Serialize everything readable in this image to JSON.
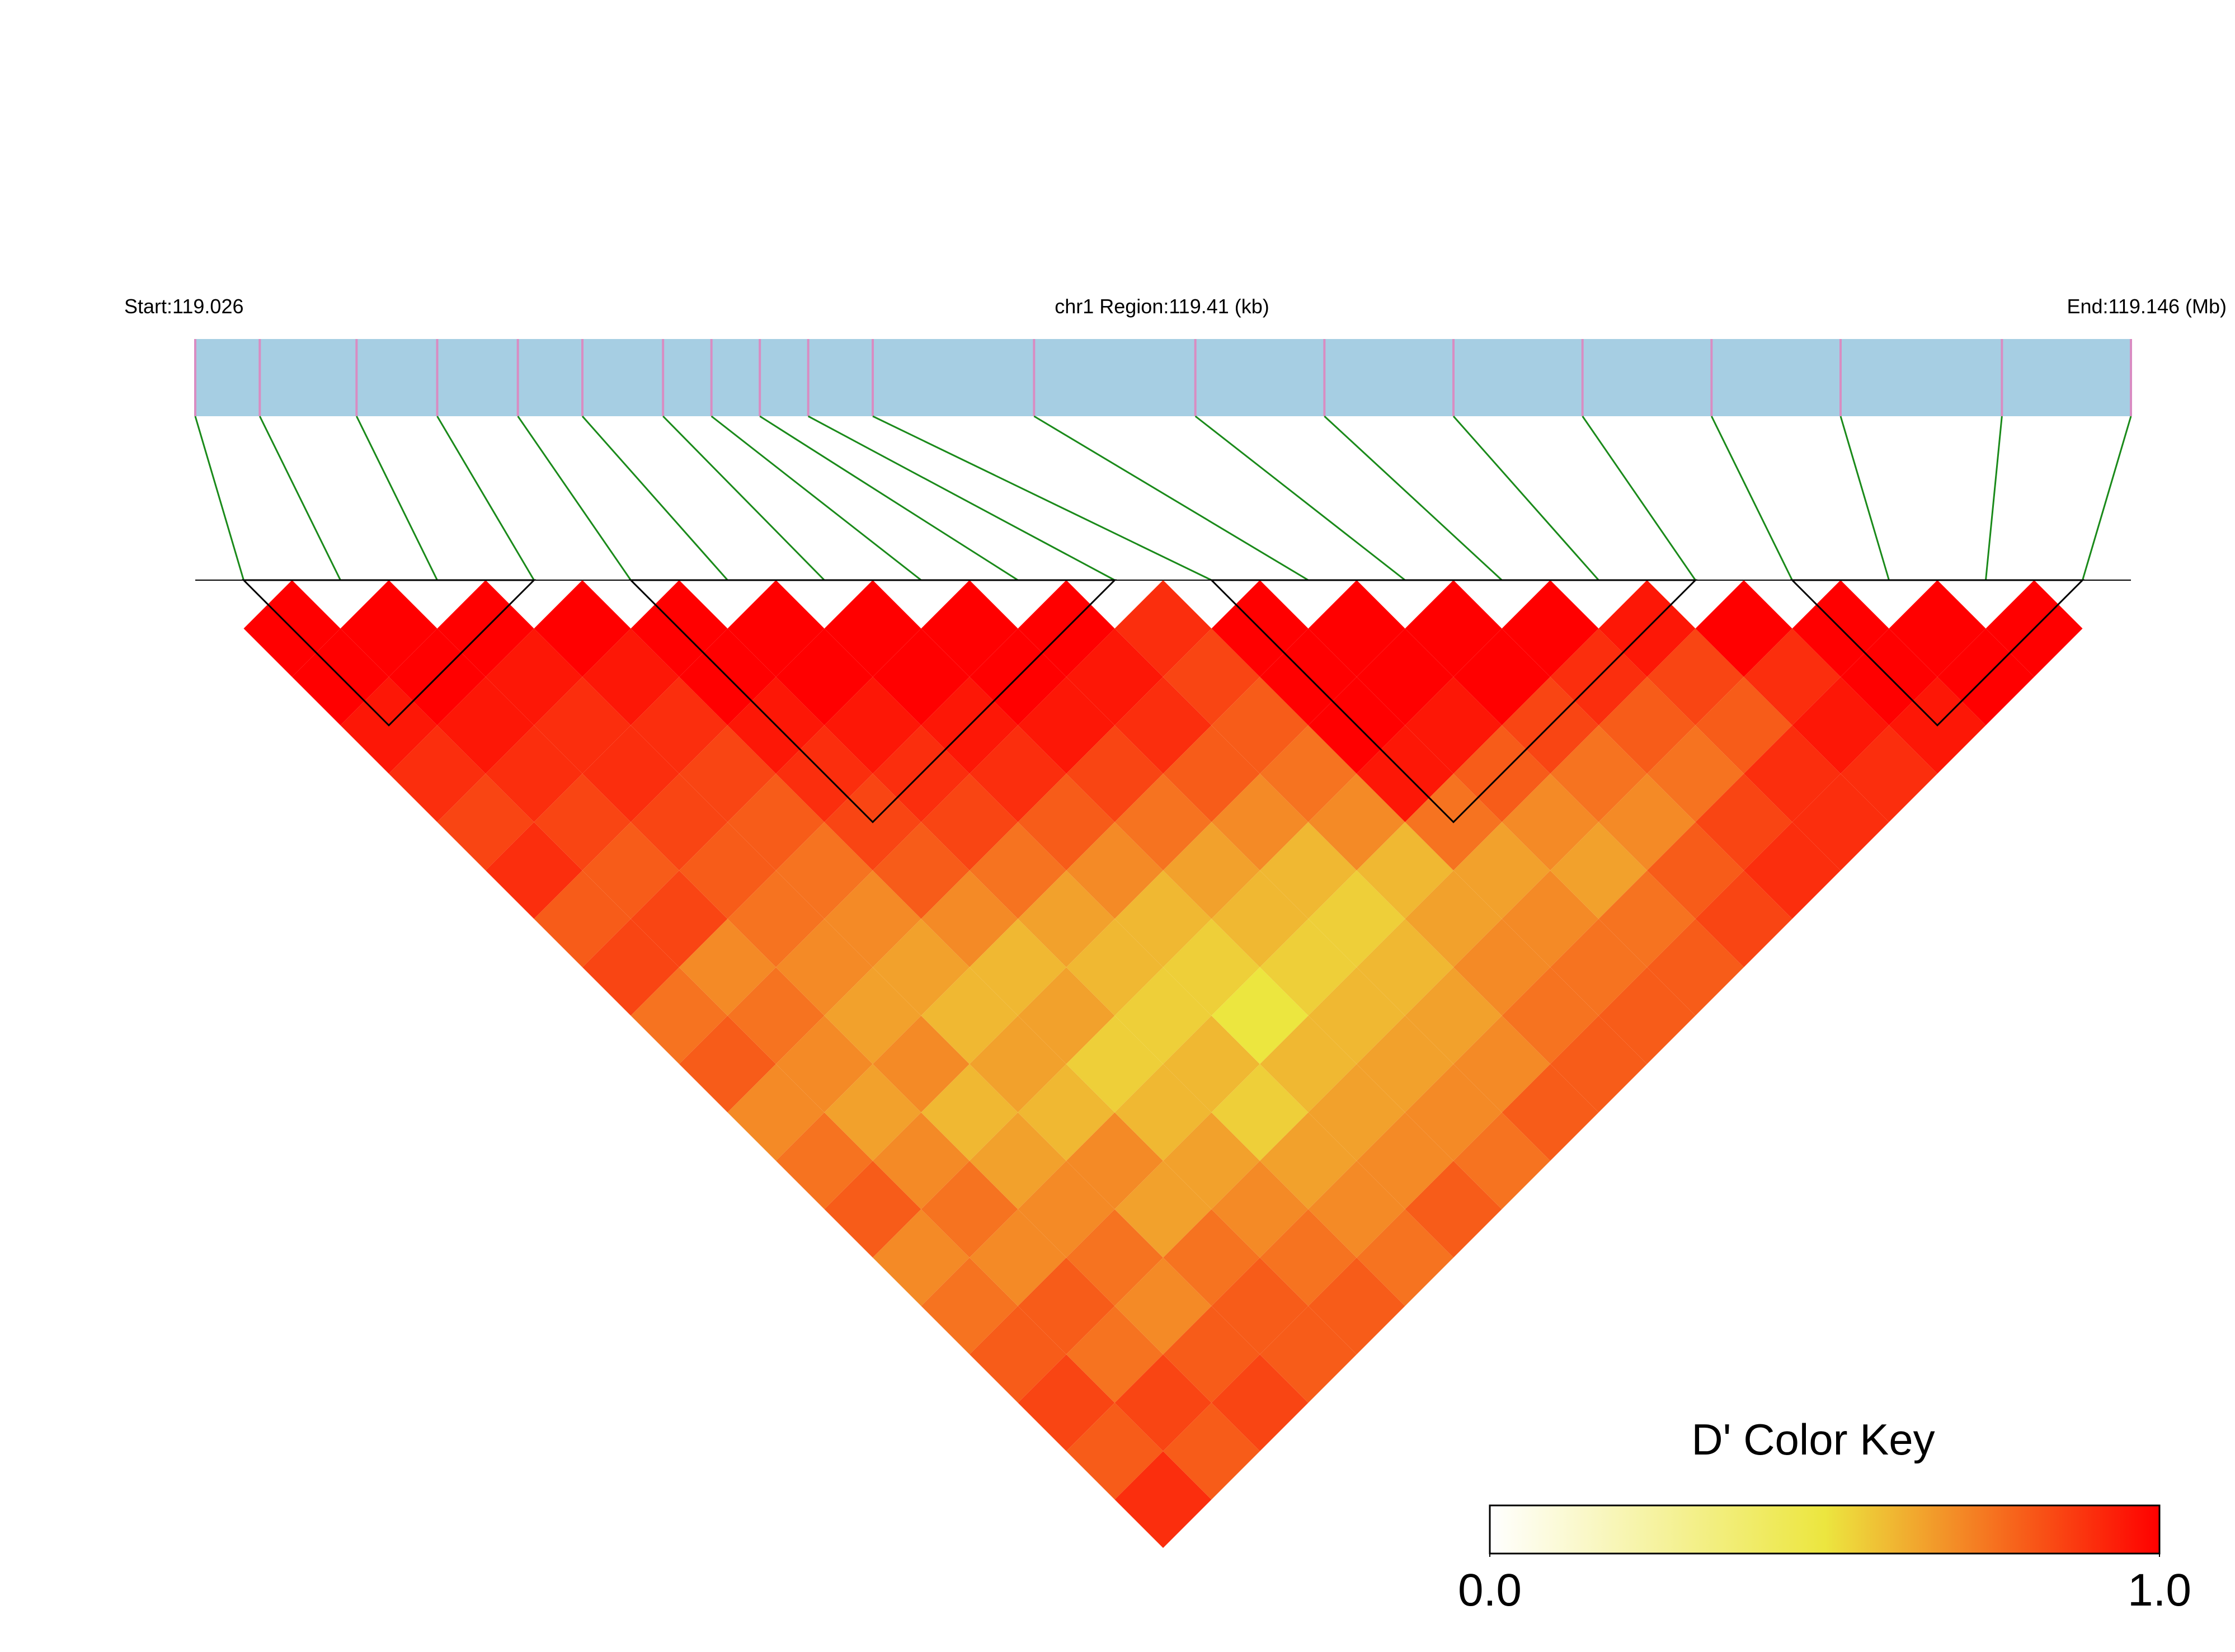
{
  "chart_data": {
    "type": "ld_heatmap",
    "start_label": "Start:119.026",
    "region_label": "chr1 Region:119.41 (kb)",
    "end_label": "End:119.146 (Mb)",
    "xlim": [
      119.026,
      119.146
    ],
    "snp_positions": [
      119.026,
      119.03,
      119.036,
      119.041,
      119.046,
      119.05,
      119.055,
      119.058,
      119.061,
      119.064,
      119.068,
      119.078,
      119.088,
      119.096,
      119.104,
      119.112,
      119.12,
      119.128,
      119.138,
      119.146
    ],
    "ld_matrix": [
      [
        1,
        1,
        0.95,
        0.9,
        0.85,
        0.9,
        0.8,
        0.85,
        0.75,
        0.8,
        0.7,
        0.75,
        0.8,
        0.7,
        0.75,
        0.8,
        0.85,
        0.8,
        0.9
      ],
      [
        1,
        1,
        0.95,
        0.9,
        0.85,
        0.8,
        0.85,
        0.7,
        0.75,
        0.7,
        0.65,
        0.7,
        0.75,
        0.7,
        0.8,
        0.75,
        0.85,
        0.8
      ],
      [
        1,
        0.95,
        0.9,
        0.9,
        0.85,
        0.8,
        0.75,
        0.7,
        0.65,
        0.7,
        0.6,
        0.65,
        0.7,
        0.75,
        0.7,
        0.8,
        0.85
      ],
      [
        1,
        0.95,
        0.9,
        0.85,
        0.8,
        0.75,
        0.7,
        0.65,
        0.6,
        0.65,
        0.6,
        0.7,
        0.65,
        0.75,
        0.8,
        0.8
      ],
      [
        1,
        1,
        0.95,
        0.9,
        0.85,
        0.8,
        0.7,
        0.6,
        0.65,
        0.55,
        0.6,
        0.65,
        0.7,
        0.75,
        0.8
      ],
      [
        1,
        1,
        0.95,
        0.9,
        0.85,
        0.75,
        0.65,
        0.6,
        0.55,
        0.6,
        0.55,
        0.65,
        0.7,
        0.75
      ],
      [
        1,
        1,
        0.95,
        0.9,
        0.8,
        0.7,
        0.6,
        0.55,
        0.5,
        0.6,
        0.65,
        0.7,
        0.8
      ],
      [
        1,
        1,
        0.95,
        0.85,
        0.75,
        0.65,
        0.6,
        0.55,
        0.6,
        0.65,
        0.7,
        0.75
      ],
      [
        1,
        0.95,
        0.9,
        0.8,
        0.7,
        0.6,
        0.55,
        0.6,
        0.65,
        0.7,
        0.8
      ],
      [
        0.9,
        0.85,
        0.8,
        0.75,
        0.7,
        0.6,
        0.65,
        0.7,
        0.75,
        0.8
      ],
      [
        1,
        1,
        1,
        0.95,
        0.75,
        0.65,
        0.7,
        0.75,
        0.8
      ],
      [
        1,
        1,
        0.95,
        0.8,
        0.7,
        0.65,
        0.75,
        0.8
      ],
      [
        1,
        1,
        0.85,
        0.75,
        0.7,
        0.8,
        0.85
      ],
      [
        1,
        0.9,
        0.8,
        0.75,
        0.85,
        0.9
      ],
      [
        0.95,
        0.85,
        0.8,
        0.9,
        0.9
      ],
      [
        1,
        0.9,
        0.95,
        0.9
      ],
      [
        1,
        1,
        0.95
      ],
      [
        1,
        1
      ],
      [
        1
      ]
    ],
    "blocks": [
      [
        0,
        3
      ],
      [
        4,
        9
      ],
      [
        10,
        15
      ],
      [
        16,
        19
      ]
    ],
    "track_color": "#a6cee3",
    "snp_tick_color": "#d98cc2",
    "link_color": "#1a8a1a",
    "key_title": "D' Color Key",
    "key_colors": [
      "#ffffff",
      "#ece63f",
      "#ff0000"
    ],
    "key_ticks": [
      {
        "value": 0,
        "label": "0.0"
      },
      {
        "value": 1,
        "label": "1.0"
      }
    ]
  }
}
